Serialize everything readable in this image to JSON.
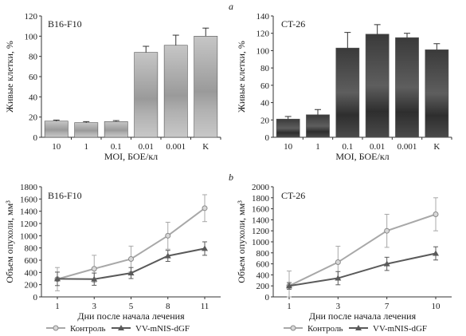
{
  "panel_labels": [
    "a",
    "b"
  ],
  "legend": [
    {
      "name": "Контроль",
      "color": "#a8a8a8",
      "marker": "circle"
    },
    {
      "name": "VV-mNIS-dGF",
      "color": "#5a5a5a",
      "marker": "triangle"
    }
  ],
  "chart_data": [
    {
      "type": "bar",
      "title": "B16-F10",
      "xlabel": "MOI, БОЕ/кл",
      "ylabel": "Живые клетки, %",
      "categories": [
        "10",
        "1",
        "0.1",
        "0.01",
        "0.001",
        "K"
      ],
      "values": [
        16,
        14.5,
        15.5,
        84,
        91,
        100
      ],
      "errors": [
        1,
        1,
        1,
        6,
        10,
        8
      ],
      "ylim": [
        0,
        120
      ],
      "yticks": [
        "0",
        "20",
        "40",
        "60",
        "80",
        "100",
        "120"
      ],
      "color": "#b5b5b5"
    },
    {
      "type": "bar",
      "title": "CT-26",
      "xlabel": "MOI, БОЕ/кл",
      "ylabel": "Живые клетки, %",
      "categories": [
        "10",
        "1",
        "0.1",
        "0.01",
        "0.001",
        "K"
      ],
      "values": [
        21,
        26,
        103,
        119,
        115,
        101
      ],
      "errors": [
        3,
        6,
        18,
        11,
        5,
        7
      ],
      "ylim": [
        0,
        140
      ],
      "yticks": [
        "0",
        "20",
        "40",
        "60",
        "80",
        "100",
        "120",
        "140"
      ],
      "color": "#4a4a4a"
    },
    {
      "type": "line",
      "title": "B16-F10",
      "xlabel": "Дни после начала лечения",
      "ylabel": "Объем опухоли, мм³",
      "x": [
        1,
        3,
        5,
        8,
        11
      ],
      "series": [
        {
          "name": "Контроль",
          "values": [
            290,
            460,
            620,
            1000,
            1450
          ],
          "errors": [
            190,
            220,
            210,
            220,
            220
          ]
        },
        {
          "name": "VV-mNIS-dGF",
          "values": [
            295,
            290,
            390,
            670,
            790
          ],
          "errors": [
            110,
            100,
            90,
            90,
            110
          ]
        }
      ],
      "ylim": [
        0,
        1800
      ],
      "yticks": [
        "0",
        "200",
        "400",
        "600",
        "800",
        "1000",
        "1200",
        "1400",
        "1600",
        "1800"
      ]
    },
    {
      "type": "line",
      "title": "CT-26",
      "xlabel": "Дни после начала лечения",
      "ylabel": "Объем опухоли, мм³",
      "x": [
        1,
        3,
        7,
        10
      ],
      "series": [
        {
          "name": "Контроль",
          "values": [
            200,
            630,
            1200,
            1500
          ],
          "errors": [
            270,
            290,
            300,
            300
          ]
        },
        {
          "name": "VV-mNIS-dGF",
          "values": [
            200,
            340,
            600,
            790
          ],
          "errors": [
            60,
            120,
            120,
            120
          ]
        }
      ],
      "ylim": [
        0,
        2000
      ],
      "yticks": [
        "0",
        "200",
        "400",
        "600",
        "800",
        "1000",
        "1200",
        "1400",
        "1600",
        "1800",
        "2000"
      ]
    }
  ]
}
